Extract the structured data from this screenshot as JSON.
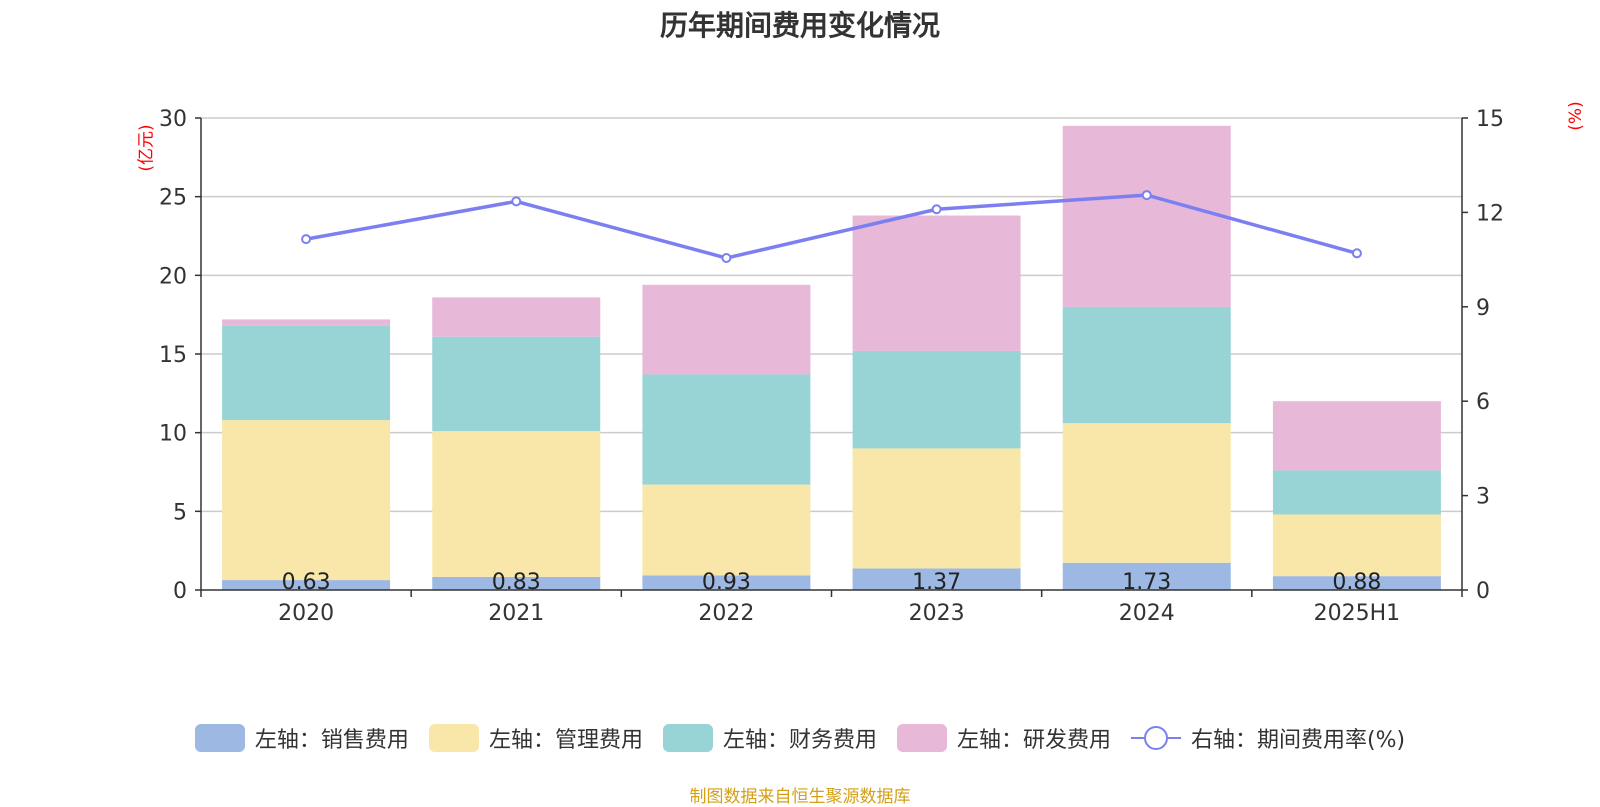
{
  "title": "历年期间费用变化情况",
  "left_unit": "(亿元)",
  "right_unit": "(%)",
  "source": "制图数据来自恒生聚源数据库",
  "legend": [
    {
      "label": "左轴：销售费用",
      "color": "#9db8e3"
    },
    {
      "label": "左轴：管理费用",
      "color": "#f8e7a9"
    },
    {
      "label": "左轴：财务费用",
      "color": "#98d4d6"
    },
    {
      "label": "左轴：研发费用",
      "color": "#e7b8d8"
    },
    {
      "label": "右轴：期间费用率(%)",
      "color": "#7b7ff0"
    }
  ],
  "chart_data": {
    "type": "bar",
    "categories": [
      "2020",
      "2021",
      "2022",
      "2023",
      "2024",
      "2025H1"
    ],
    "left_axis": {
      "min": 0,
      "max": 30,
      "ticks": [
        0,
        5,
        10,
        15,
        20,
        25,
        30
      ]
    },
    "right_axis": {
      "min": 0,
      "max": 15,
      "ticks": [
        0,
        3,
        6,
        9,
        12,
        15
      ]
    },
    "series": [
      {
        "name": "左轴：销售费用",
        "axis": "left",
        "stack": true,
        "color": "#9db8e3",
        "values": [
          0.63,
          0.83,
          0.93,
          1.37,
          1.73,
          0.88
        ],
        "labels": [
          "0.63",
          "0.83",
          "0.93",
          "1.37",
          "1.73",
          "0.88"
        ]
      },
      {
        "name": "左轴：管理费用",
        "axis": "left",
        "stack": true,
        "color": "#f8e7a9",
        "values": [
          10.17,
          9.27,
          5.77,
          7.63,
          8.87,
          3.92
        ]
      },
      {
        "name": "左轴：财务费用",
        "axis": "left",
        "stack": true,
        "color": "#98d4d6",
        "values": [
          6.0,
          6.0,
          7.0,
          6.2,
          7.4,
          2.8
        ]
      },
      {
        "name": "左轴：研发费用",
        "axis": "left",
        "stack": true,
        "color": "#e7b8d8",
        "values": [
          0.4,
          2.5,
          5.7,
          8.6,
          11.5,
          4.4
        ]
      },
      {
        "name": "右轴：期间费用率(%)",
        "axis": "right",
        "type": "line",
        "color": "#7b7ff0",
        "values": [
          11.15,
          12.35,
          10.55,
          12.1,
          12.55,
          10.7
        ]
      }
    ],
    "grid": true
  }
}
